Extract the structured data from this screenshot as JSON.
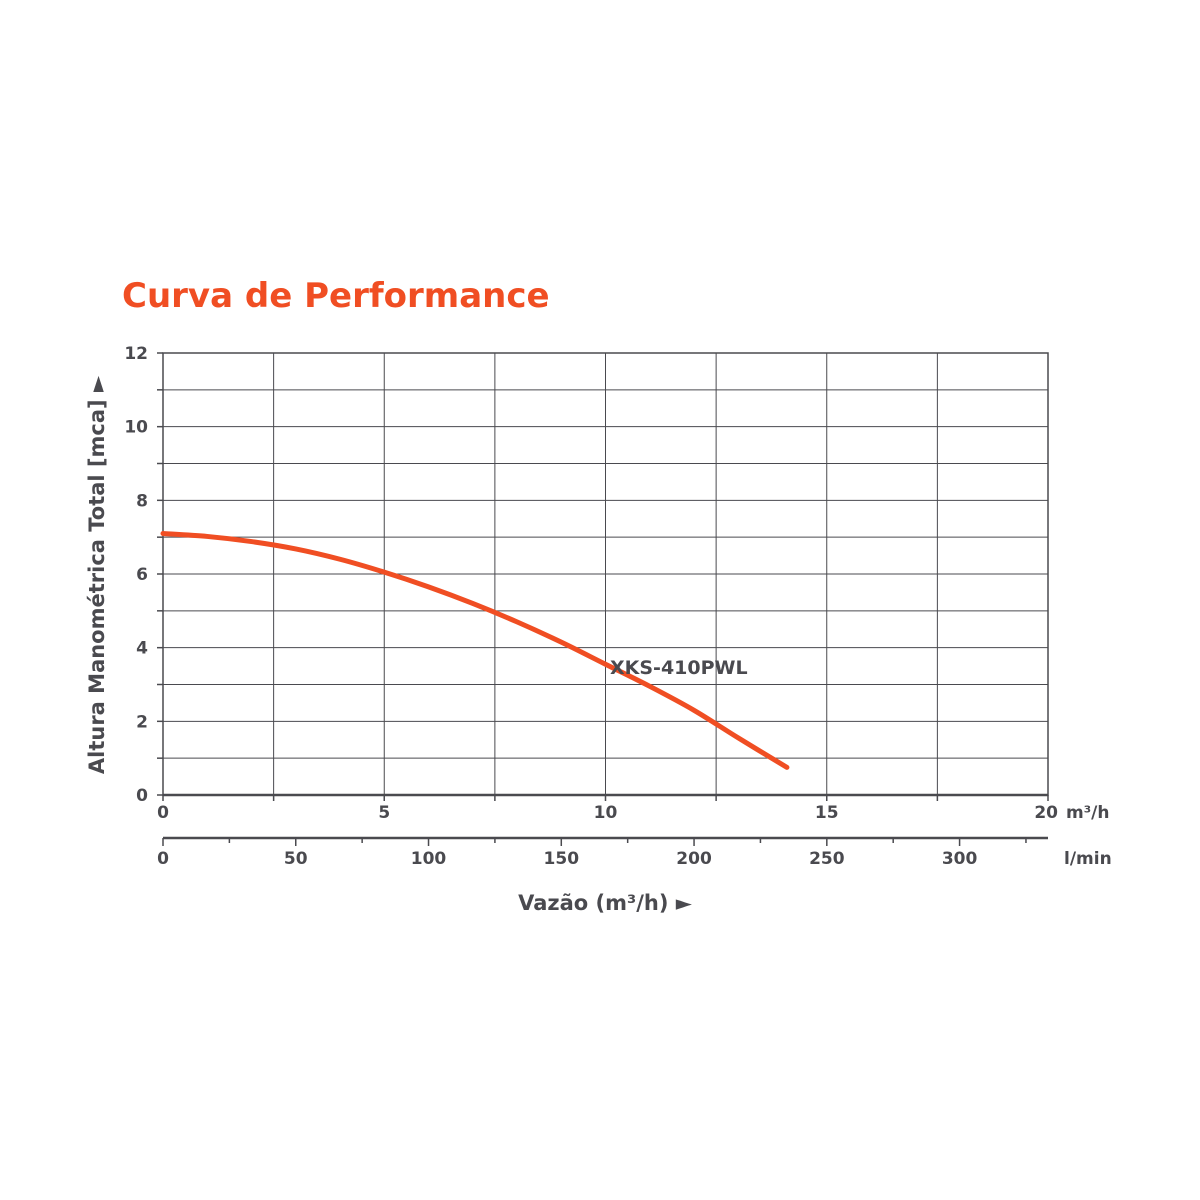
{
  "chart_data": {
    "type": "line",
    "title": "Curva de Performance",
    "xlabel": "Vazão (m³/h) ►",
    "ylabel": "Altura Manométrica Total [mca] ►",
    "xlim": [
      0,
      20
    ],
    "ylim": [
      0,
      12
    ],
    "x_ticks": [
      "0",
      "5",
      "10",
      "15",
      "20"
    ],
    "x_unit": "m³/h",
    "y_ticks": [
      "0",
      "2",
      "4",
      "6",
      "8",
      "10",
      "12"
    ],
    "secondary_x": {
      "unit": "l/min",
      "lim": [
        0,
        333.3
      ],
      "ticks": [
        "0",
        "50",
        "100",
        "150",
        "200",
        "250",
        "300"
      ]
    },
    "grid": true,
    "series": [
      {
        "name": "XKS-410PWL",
        "color": "#f04e23",
        "x": [
          0,
          1,
          2,
          3,
          4,
          5,
          6,
          7,
          8,
          9,
          10,
          11,
          12,
          13,
          14.1
        ],
        "y": [
          7.1,
          7.02,
          6.88,
          6.68,
          6.4,
          6.05,
          5.65,
          5.2,
          4.7,
          4.15,
          3.55,
          2.95,
          2.3,
          1.55,
          0.75
        ]
      }
    ]
  }
}
